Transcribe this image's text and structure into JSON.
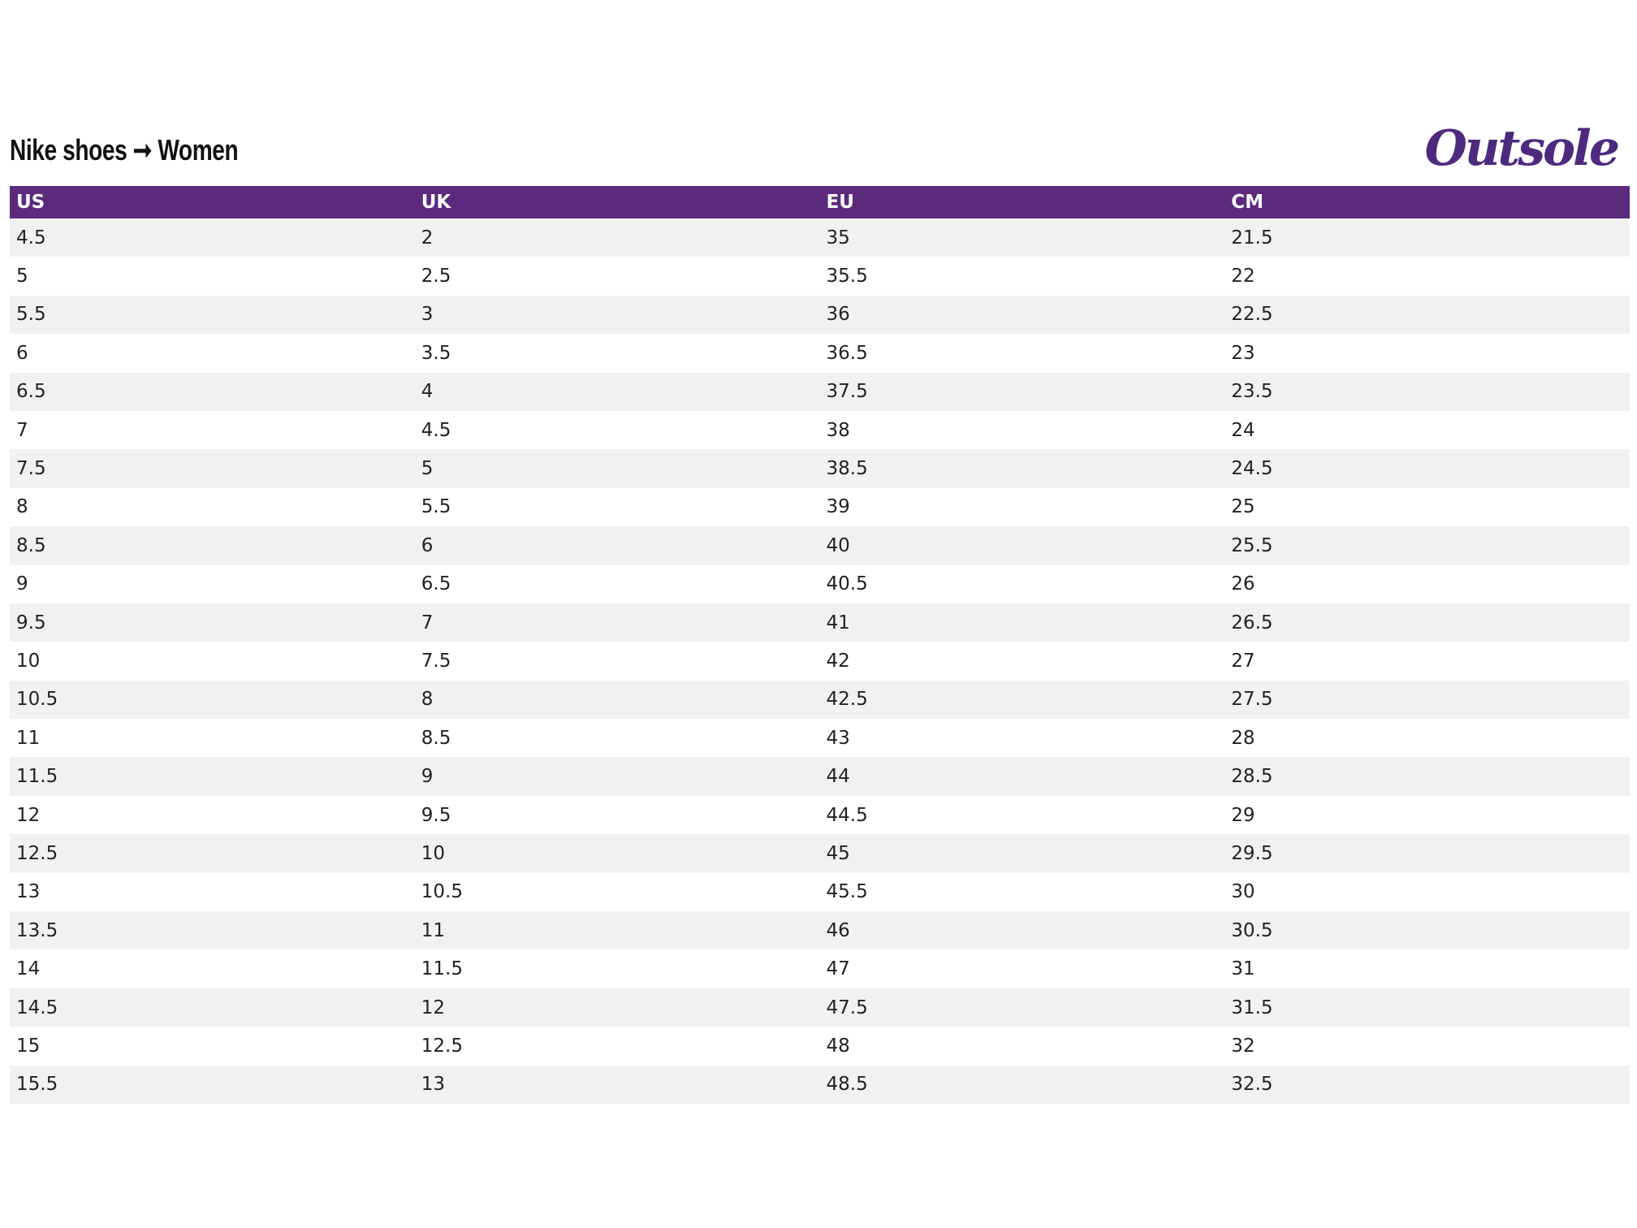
{
  "header": {
    "title": "Nike shoes ➞ Women",
    "logo": "Outsole"
  },
  "table": {
    "headers": [
      "US",
      "UK",
      "EU",
      "CM"
    ],
    "rows": [
      [
        4.5,
        2,
        35,
        21.5
      ],
      [
        5,
        2.5,
        35.5,
        22
      ],
      [
        5.5,
        3,
        36,
        22.5
      ],
      [
        6,
        3.5,
        36.5,
        23
      ],
      [
        6.5,
        4,
        37.5,
        23.5
      ],
      [
        7,
        4.5,
        38,
        24
      ],
      [
        7.5,
        5,
        38.5,
        24.5
      ],
      [
        8,
        5.5,
        39,
        25
      ],
      [
        8.5,
        6,
        40,
        25.5
      ],
      [
        9,
        6.5,
        40.5,
        26
      ],
      [
        9.5,
        7,
        41,
        26.5
      ],
      [
        10,
        7.5,
        42,
        27
      ],
      [
        10.5,
        8,
        42.5,
        27.5
      ],
      [
        11,
        8.5,
        43,
        28
      ],
      [
        11.5,
        9,
        44,
        28.5
      ],
      [
        12,
        9.5,
        44.5,
        29
      ],
      [
        12.5,
        10,
        45,
        29.5
      ],
      [
        13,
        10.5,
        45.5,
        30
      ],
      [
        13.5,
        11,
        46,
        30.5
      ],
      [
        14,
        11.5,
        47,
        31
      ],
      [
        14.5,
        12,
        47.5,
        31.5
      ],
      [
        15,
        12.5,
        48,
        32
      ],
      [
        15.5,
        13,
        48.5,
        32.5
      ]
    ]
  }
}
